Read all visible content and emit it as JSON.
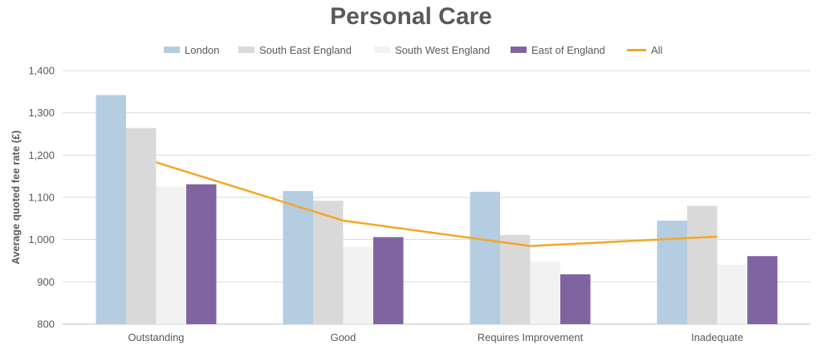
{
  "chart_data": {
    "type": "bar",
    "title": "Personal Care",
    "ylabel": "Average quoted fee rate (£)",
    "xlabel": "",
    "ylim": [
      800,
      1400
    ],
    "yticks": [
      800,
      900,
      1000,
      1100,
      1200,
      1300,
      1400
    ],
    "ytick_labels": [
      "800",
      "900",
      "1,000",
      "1,100",
      "1,200",
      "1,300",
      "1,400"
    ],
    "categories": [
      "Outstanding",
      "Good",
      "Requires Improvement",
      "Inadequate"
    ],
    "series": [
      {
        "name": "London",
        "type": "bar",
        "color": "#b4cde1",
        "values": [
          1342,
          1115,
          1113,
          1045
        ]
      },
      {
        "name": "South East England",
        "type": "bar",
        "color": "#d9d9d9",
        "values": [
          1264,
          1092,
          1011,
          1080
        ]
      },
      {
        "name": "South West England",
        "type": "bar",
        "color": "#f2f2f2",
        "values": [
          1126,
          983,
          948,
          941
        ]
      },
      {
        "name": "East of England",
        "type": "bar",
        "color": "#8064a2",
        "values": [
          1131,
          1006,
          918,
          961
        ]
      },
      {
        "name": "All",
        "type": "line",
        "color": "#f5a623",
        "values": [
          1183,
          1045,
          985,
          1007
        ]
      }
    ],
    "grid": "horizontal",
    "legend_position": "top"
  }
}
